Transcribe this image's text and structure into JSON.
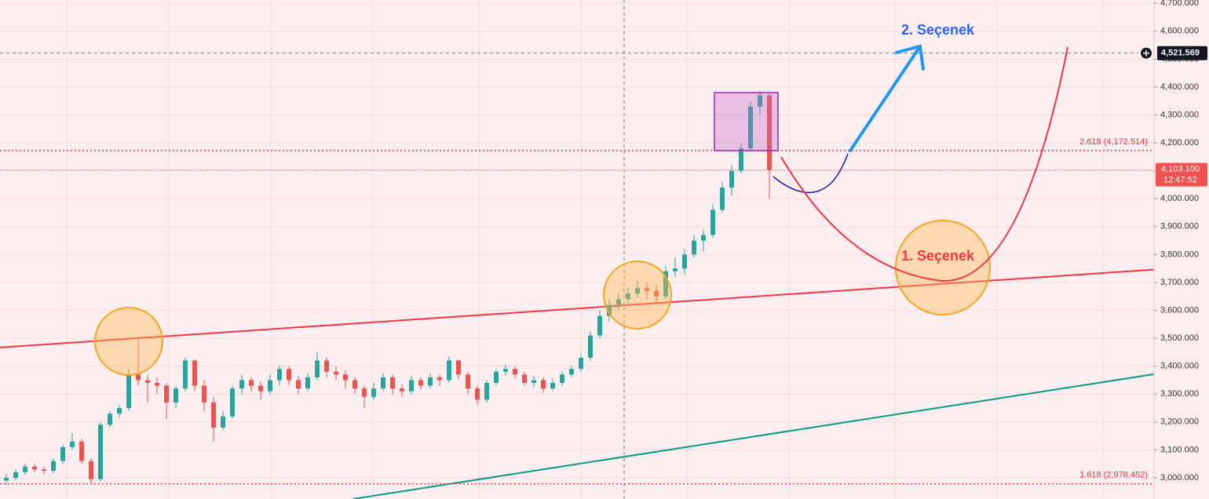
{
  "chart_data": {
    "type": "candlestick",
    "up_color": "#26a69a",
    "down_color": "#ef5350",
    "grid": true,
    "ylim": [
      2924,
      4712
    ],
    "yticks": [
      {
        "value": 3000,
        "label": "3,000.000"
      },
      {
        "value": 3100,
        "label": "3,100.000"
      },
      {
        "value": 3200,
        "label": "3,200.000"
      },
      {
        "value": 3300,
        "label": "3,300.000"
      },
      {
        "value": 3400,
        "label": "3,400.000"
      },
      {
        "value": 3500,
        "label": "3,500.000"
      },
      {
        "value": 3600,
        "label": "3,600.000"
      },
      {
        "value": 3700,
        "label": "3,700.000"
      },
      {
        "value": 3800,
        "label": "3,800.000"
      },
      {
        "value": 3900,
        "label": "3,900.000"
      },
      {
        "value": 4000,
        "label": "4,000.000"
      },
      {
        "value": 4100,
        "label": "4,100.000"
      },
      {
        "value": 4200,
        "label": "4,200.000"
      },
      {
        "value": 4300,
        "label": "4,300.000"
      },
      {
        "value": 4400,
        "label": "4,400.000"
      },
      {
        "value": 4500,
        "label": "4,500.000"
      },
      {
        "value": 4600,
        "label": "4,600.000"
      },
      {
        "value": 4700,
        "label": "4,700.000"
      }
    ],
    "candles": [
      [
        2990,
        3015,
        2975,
        3000
      ],
      [
        3000,
        3030,
        2990,
        3020
      ],
      [
        3020,
        3050,
        3010,
        3040
      ],
      [
        3040,
        3050,
        3020,
        3030
      ],
      [
        3030,
        3040,
        3010,
        3025
      ],
      [
        3025,
        3070,
        3015,
        3060
      ],
      [
        3060,
        3120,
        3050,
        3110
      ],
      [
        3110,
        3160,
        3100,
        3130
      ],
      [
        3130,
        3140,
        3050,
        3060
      ],
      [
        3060,
        3070,
        2980,
        2995
      ],
      [
        2995,
        3200,
        2985,
        3190
      ],
      [
        3190,
        3240,
        3180,
        3230
      ],
      [
        3230,
        3260,
        3215,
        3250
      ],
      [
        3250,
        3390,
        3240,
        3370
      ],
      [
        3370,
        3500,
        3330,
        3350
      ],
      [
        3350,
        3370,
        3270,
        3340
      ],
      [
        3340,
        3360,
        3300,
        3330
      ],
      [
        3330,
        3340,
        3210,
        3270
      ],
      [
        3270,
        3330,
        3250,
        3320
      ],
      [
        3320,
        3430,
        3310,
        3420
      ],
      [
        3420,
        3425,
        3310,
        3330
      ],
      [
        3330,
        3350,
        3240,
        3270
      ],
      [
        3270,
        3290,
        3130,
        3180
      ],
      [
        3180,
        3240,
        3170,
        3220
      ],
      [
        3220,
        3330,
        3210,
        3320
      ],
      [
        3320,
        3370,
        3300,
        3350
      ],
      [
        3350,
        3360,
        3310,
        3330
      ],
      [
        3330,
        3345,
        3280,
        3310
      ],
      [
        3310,
        3370,
        3300,
        3350
      ],
      [
        3350,
        3400,
        3330,
        3390
      ],
      [
        3390,
        3400,
        3330,
        3350
      ],
      [
        3350,
        3365,
        3300,
        3320
      ],
      [
        3320,
        3375,
        3310,
        3360
      ],
      [
        3360,
        3450,
        3350,
        3420
      ],
      [
        3420,
        3430,
        3360,
        3380
      ],
      [
        3380,
        3400,
        3350,
        3370
      ],
      [
        3370,
        3385,
        3320,
        3350
      ],
      [
        3350,
        3360,
        3300,
        3320
      ],
      [
        3320,
        3330,
        3250,
        3290
      ],
      [
        3290,
        3340,
        3280,
        3320
      ],
      [
        3320,
        3375,
        3310,
        3360
      ],
      [
        3360,
        3370,
        3300,
        3320
      ],
      [
        3320,
        3335,
        3290,
        3310
      ],
      [
        3310,
        3365,
        3300,
        3350
      ],
      [
        3350,
        3360,
        3315,
        3330
      ],
      [
        3330,
        3375,
        3320,
        3360
      ],
      [
        3360,
        3370,
        3330,
        3350
      ],
      [
        3350,
        3435,
        3340,
        3420
      ],
      [
        3420,
        3425,
        3355,
        3370
      ],
      [
        3370,
        3380,
        3300,
        3320
      ],
      [
        3320,
        3330,
        3260,
        3280
      ],
      [
        3280,
        3350,
        3270,
        3340
      ],
      [
        3340,
        3390,
        3330,
        3380
      ],
      [
        3380,
        3405,
        3365,
        3390
      ],
      [
        3390,
        3400,
        3355,
        3370
      ],
      [
        3370,
        3380,
        3330,
        3340
      ],
      [
        3340,
        3365,
        3325,
        3350
      ],
      [
        3350,
        3360,
        3305,
        3320
      ],
      [
        3320,
        3355,
        3310,
        3340
      ],
      [
        3340,
        3380,
        3330,
        3370
      ],
      [
        3370,
        3400,
        3360,
        3390
      ],
      [
        3390,
        3445,
        3380,
        3430
      ],
      [
        3430,
        3525,
        3420,
        3510
      ],
      [
        3510,
        3600,
        3500,
        3580
      ],
      [
        3580,
        3640,
        3560,
        3620
      ],
      [
        3620,
        3660,
        3600,
        3640
      ],
      [
        3640,
        3680,
        3620,
        3660
      ],
      [
        3660,
        3705,
        3645,
        3680
      ],
      [
        3680,
        3700,
        3640,
        3670
      ],
      [
        3670,
        3690,
        3630,
        3650
      ],
      [
        3650,
        3760,
        3640,
        3740
      ],
      [
        3740,
        3790,
        3720,
        3750
      ],
      [
        3750,
        3820,
        3730,
        3800
      ],
      [
        3800,
        3870,
        3790,
        3850
      ],
      [
        3850,
        3890,
        3810,
        3870
      ],
      [
        3870,
        3980,
        3860,
        3960
      ],
      [
        3960,
        4060,
        3950,
        4040
      ],
      [
        4040,
        4120,
        4010,
        4100
      ],
      [
        4100,
        4200,
        4090,
        4180
      ],
      [
        4180,
        4350,
        4170,
        4330
      ],
      [
        4330,
        4385,
        4300,
        4370
      ],
      [
        4370,
        4380,
        4000,
        4103.1
      ]
    ],
    "levels": [
      {
        "label": "2.618 (4,172.514)",
        "value": 4172.514,
        "color": "#f23645"
      },
      {
        "label": "1.618 (2,978.452)",
        "value": 2978.452,
        "color": "#f23645"
      }
    ],
    "trendlines": [
      {
        "color": "#f23645",
        "x": [
          -0.67,
          121.8
        ],
        "values": [
          3467,
          3746
        ]
      },
      {
        "color": "#089981",
        "x": [
          36.8,
          121.8
        ],
        "values": [
          2924,
          3371
        ]
      }
    ],
    "crosshair": {
      "value": 4521.569,
      "label": "4,521.569"
    },
    "last_price": {
      "value": 4103.1,
      "label": "4,103.100",
      "timer": "12:47:52"
    },
    "annotations": [
      "2. Seçenek",
      "1. Seçenek"
    ]
  }
}
